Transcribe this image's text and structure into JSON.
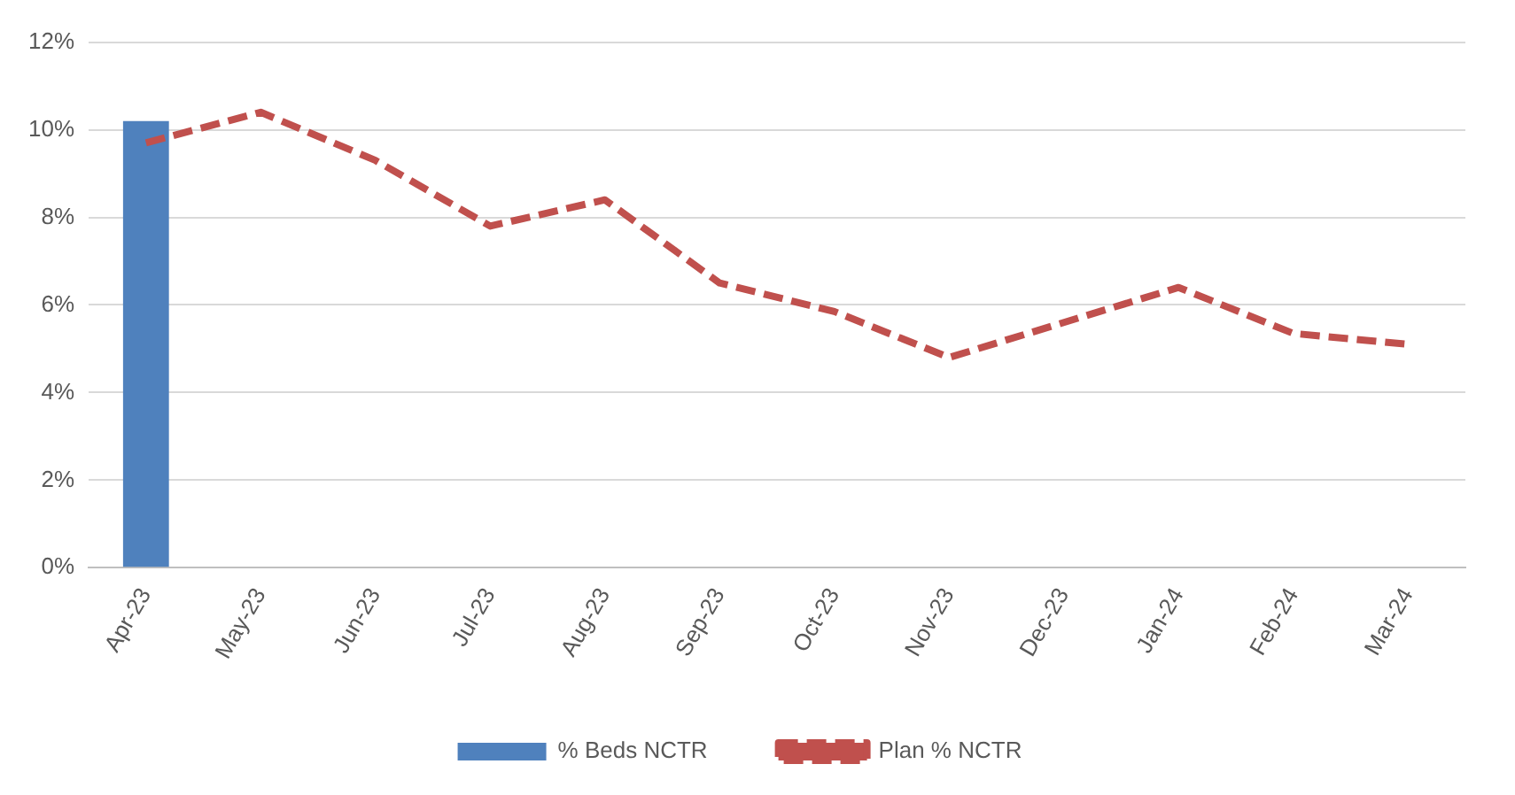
{
  "chart_data": {
    "type": "bar",
    "categories": [
      "Apr-23",
      "May-23",
      "Jun-23",
      "Jul-23",
      "Aug-23",
      "Sep-23",
      "Oct-23",
      "Nov-23",
      "Dec-23",
      "Jan-24",
      "Feb-24",
      "Mar-24"
    ],
    "series": [
      {
        "name": "% Beds NCTR",
        "type": "bar",
        "color": "#4f81bd",
        "values": [
          10.2,
          null,
          null,
          null,
          null,
          null,
          null,
          null,
          null,
          null,
          null,
          null
        ]
      },
      {
        "name": "Plan % NCTR",
        "type": "line",
        "color": "#c0504d",
        "line_style": "dashed",
        "values": [
          9.7,
          10.4,
          9.3,
          7.8,
          8.4,
          6.5,
          5.85,
          4.8,
          5.6,
          6.4,
          5.35,
          5.1
        ]
      }
    ],
    "ylim": [
      0,
      12
    ],
    "yticks": [
      {
        "value": 0,
        "label": "0%"
      },
      {
        "value": 2,
        "label": "2%"
      },
      {
        "value": 4,
        "label": "4%"
      },
      {
        "value": 6,
        "label": "6%"
      },
      {
        "value": 8,
        "label": "8%"
      },
      {
        "value": 10,
        "label": "10%"
      },
      {
        "value": 12,
        "label": "12%"
      }
    ],
    "grid": "y",
    "legend": "bottom",
    "marker": "none"
  }
}
